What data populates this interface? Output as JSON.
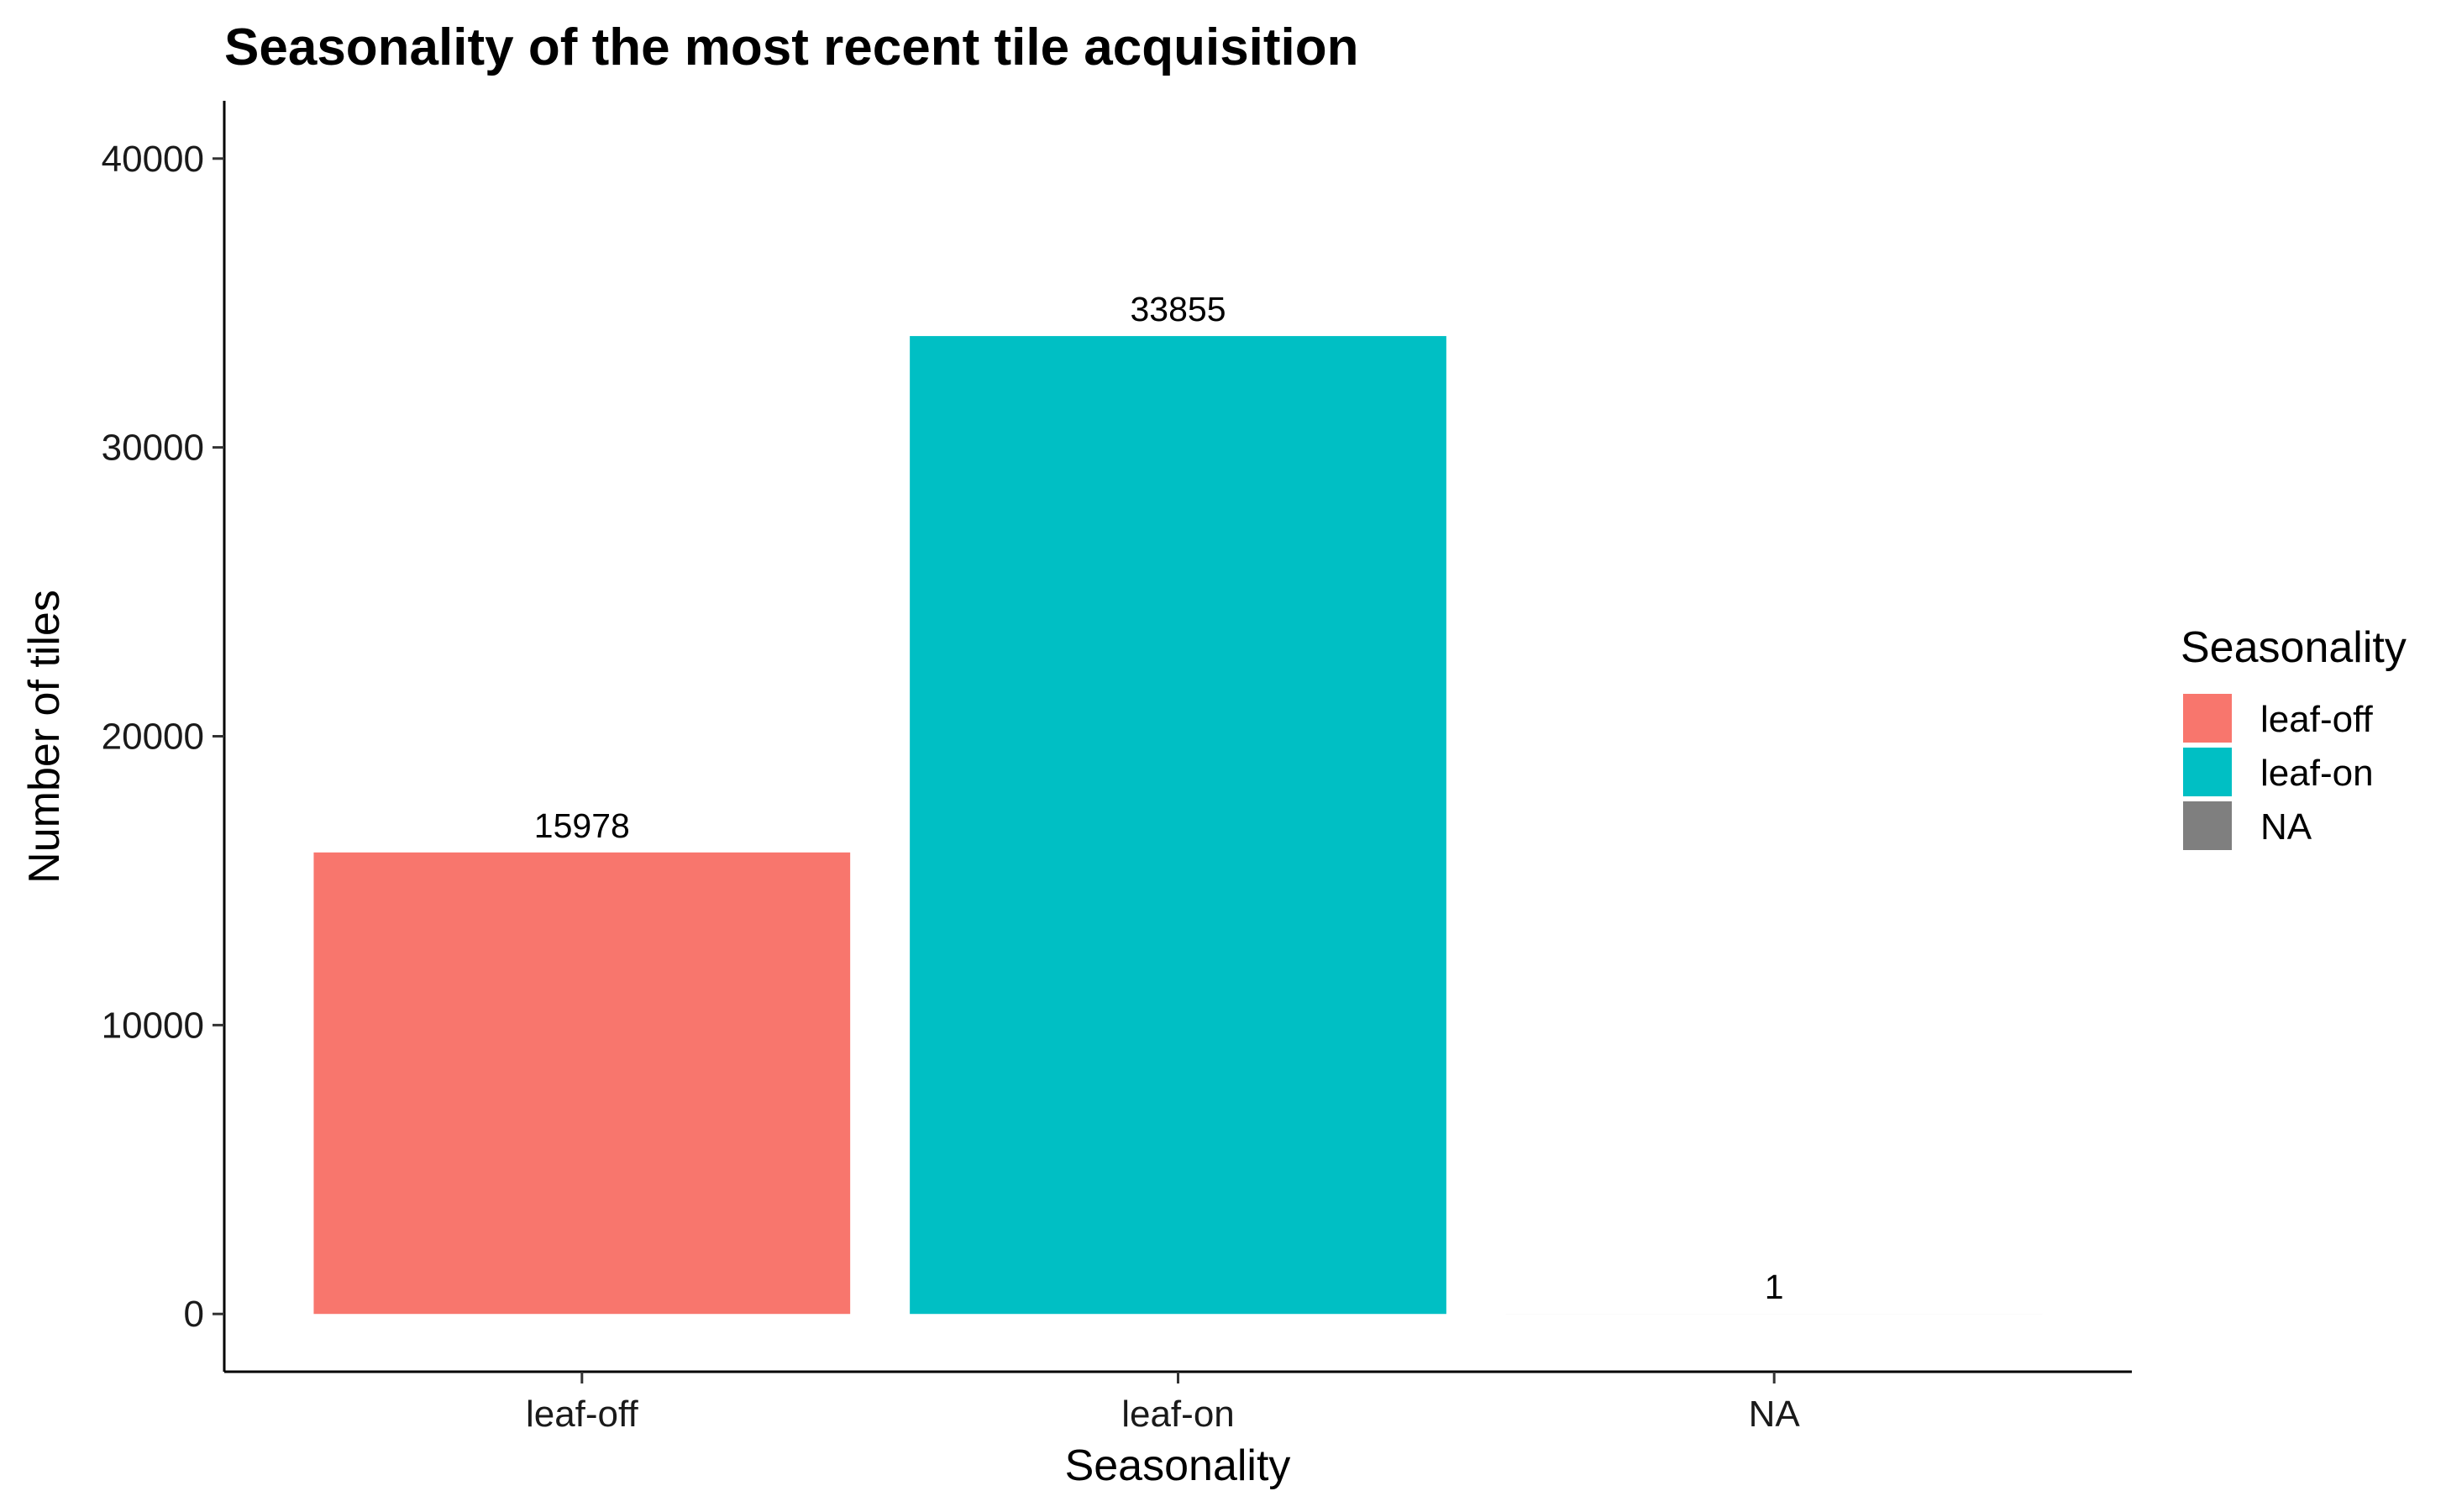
{
  "chart_data": {
    "type": "bar",
    "title": "Seasonality of the most recent tile acquisition",
    "xlabel": "Seasonality",
    "ylabel": "Number of tiles",
    "categories": [
      "leaf-off",
      "leaf-on",
      "NA"
    ],
    "values": [
      15978,
      33855,
      1
    ],
    "data_labels": [
      "15978",
      "33855",
      "1"
    ],
    "colors": [
      "#F8766D",
      "#00BFC4",
      "#7F7F7F"
    ],
    "ylim": [
      -2000,
      42000
    ],
    "yticks": [
      0,
      10000,
      20000,
      30000,
      40000
    ],
    "ytick_labels": [
      "0",
      "10000",
      "20000",
      "30000",
      "40000"
    ],
    "grid": false,
    "legend": {
      "title": "Seasonality",
      "position": "right",
      "entries": [
        "leaf-off",
        "leaf-on",
        "NA"
      ]
    }
  }
}
